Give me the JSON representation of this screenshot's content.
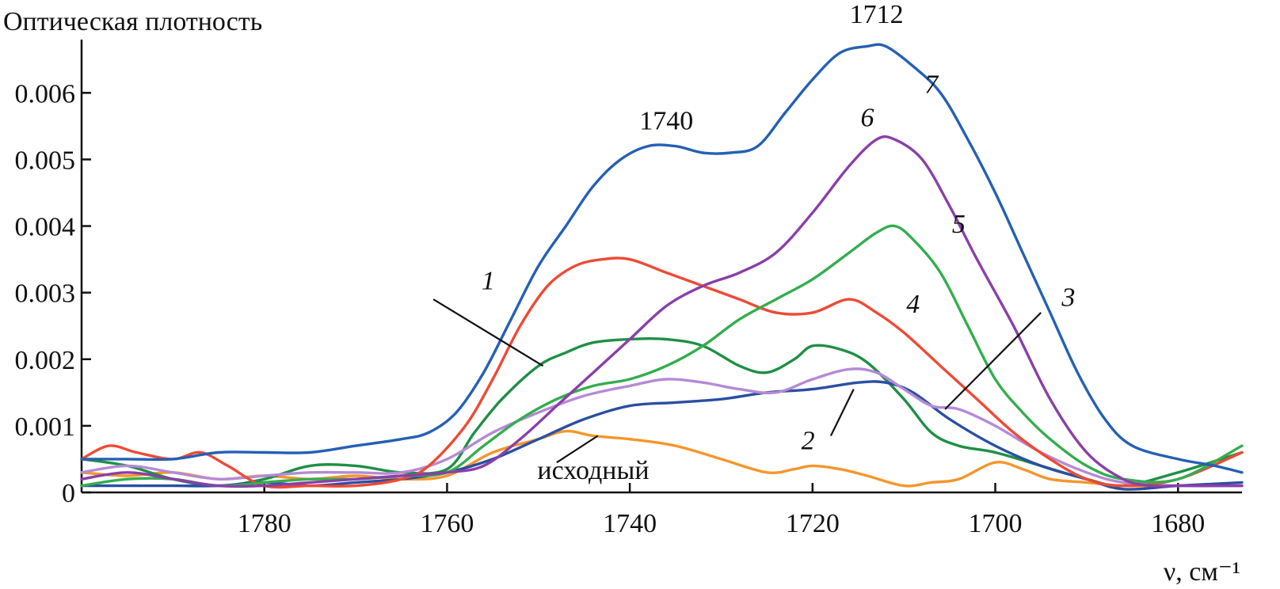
{
  "chart_data": {
    "type": "line",
    "ylabel": "Оптическая плотность",
    "xlabel": "ν, см⁻¹",
    "xlim": [
      1800,
      1673
    ],
    "ylim": [
      0,
      0.0068
    ],
    "x_ticks": [
      1780,
      1760,
      1740,
      1720,
      1700,
      1680
    ],
    "x_tick_labels": [
      "1780",
      "1760",
      "1740",
      "1720",
      "1700",
      "1680"
    ],
    "y_ticks": [
      0,
      0.001,
      0.002,
      0.003,
      0.004,
      0.005,
      0.006
    ],
    "y_tick_labels": [
      "0",
      "0.001",
      "0.002",
      "0.003",
      "0.004",
      "0.005",
      "0.006"
    ],
    "peak_annotations": [
      {
        "text": "1740",
        "x": 1736,
        "y": 0.00545
      },
      {
        "text": "1712",
        "x": 1713,
        "y": 0.00705
      }
    ],
    "series": [
      {
        "name": "исходный",
        "label": "исходный",
        "color": "#f5962a",
        "label_pos": {
          "x": 1744,
          "y": 0.0002
        },
        "leader": {
          "x1": 1748,
          "y1": 0.00045,
          "x2": 1743.5,
          "y2": 0.00085
        },
        "x": [
          1800,
          1795,
          1790,
          1785,
          1780,
          1775,
          1770,
          1765,
          1760,
          1755,
          1750,
          1747,
          1744,
          1740,
          1735,
          1730,
          1725,
          1722,
          1720,
          1717,
          1714,
          1710,
          1707,
          1704,
          1700,
          1697,
          1694,
          1690,
          1686,
          1680,
          1673
        ],
        "values": [
          0.0003,
          0.00025,
          0.0003,
          0.0002,
          0.00025,
          0.0002,
          0.00025,
          0.0002,
          0.00025,
          0.0006,
          0.0008,
          0.00092,
          0.00085,
          0.0008,
          0.0007,
          0.0005,
          0.0003,
          0.00035,
          0.0004,
          0.00035,
          0.00025,
          0.0001,
          0.00015,
          0.0002,
          0.00045,
          0.00035,
          0.0002,
          0.00015,
          0.0001,
          0.0001,
          0.0001
        ]
      },
      {
        "name": "1",
        "label": "1",
        "color": "#1f8f45",
        "label_pos": {
          "x": 1755.5,
          "y": 0.00305
        },
        "leader": {
          "x1": 1761.5,
          "y1": 0.0029,
          "x2": 1749.5,
          "y2": 0.0019
        },
        "x": [
          1800,
          1795,
          1790,
          1785,
          1780,
          1775,
          1770,
          1765,
          1760,
          1757,
          1754,
          1750,
          1747,
          1744,
          1740,
          1736,
          1732,
          1728,
          1725,
          1722,
          1720,
          1717,
          1714,
          1710,
          1707,
          1704,
          1700,
          1695,
          1690,
          1686,
          1680,
          1673
        ],
        "values": [
          0.0005,
          0.0004,
          0.0002,
          0.0001,
          0.0002,
          0.0004,
          0.0004,
          0.0003,
          0.00035,
          0.0009,
          0.0014,
          0.0019,
          0.0021,
          0.00225,
          0.0023,
          0.0023,
          0.0022,
          0.0019,
          0.0018,
          0.002,
          0.0022,
          0.00215,
          0.00195,
          0.0014,
          0.0009,
          0.0007,
          0.0006,
          0.0004,
          0.0002,
          0.0001,
          0.0003,
          0.0006
        ]
      },
      {
        "name": "2",
        "label": "2",
        "color": "#2a4fa3",
        "label_pos": {
          "x": 1720.5,
          "y": 0.00065
        },
        "leader": {
          "x1": 1718,
          "y1": 0.00085,
          "x2": 1715.5,
          "y2": 0.00155
        },
        "x": [
          1800,
          1795,
          1790,
          1785,
          1780,
          1775,
          1770,
          1765,
          1760,
          1755,
          1750,
          1745,
          1740,
          1735,
          1730,
          1725,
          1720,
          1715,
          1712,
          1709,
          1705,
          1700,
          1695,
          1690,
          1686,
          1680,
          1673
        ],
        "values": [
          0.0001,
          0.0001,
          0.0001,
          0.0001,
          0.00015,
          0.0001,
          0.00015,
          0.0002,
          0.0003,
          0.0005,
          0.0008,
          0.0011,
          0.0013,
          0.00135,
          0.0014,
          0.0015,
          0.00155,
          0.00165,
          0.00165,
          0.0015,
          0.0011,
          0.0007,
          0.0004,
          0.0002,
          5e-05,
          0.0001,
          0.00015
        ]
      },
      {
        "name": "3",
        "label": "3",
        "color": "#b58ad6",
        "label_pos": {
          "x": 1692,
          "y": 0.0028
        },
        "leader": {
          "x1": 1695,
          "y1": 0.0027,
          "x2": 1705.5,
          "y2": 0.00125
        },
        "x": [
          1800,
          1795,
          1790,
          1785,
          1780,
          1775,
          1770,
          1765,
          1760,
          1755,
          1750,
          1745,
          1740,
          1736,
          1732,
          1728,
          1724,
          1720,
          1716,
          1713,
          1710,
          1707,
          1704,
          1700,
          1695,
          1690,
          1686,
          1680,
          1673
        ],
        "values": [
          0.0003,
          0.0004,
          0.0003,
          0.0002,
          0.00025,
          0.0003,
          0.0003,
          0.0003,
          0.0005,
          0.0009,
          0.0012,
          0.00145,
          0.0016,
          0.0017,
          0.00165,
          0.00155,
          0.0015,
          0.0017,
          0.00185,
          0.0018,
          0.00155,
          0.0013,
          0.00125,
          0.001,
          0.0006,
          0.0003,
          0.00015,
          0.0001,
          0.0001
        ]
      },
      {
        "name": "4",
        "label": "4",
        "color": "#ee4a35",
        "label_pos": {
          "x": 1709,
          "y": 0.0027
        },
        "x": [
          1800,
          1797,
          1794,
          1790,
          1787,
          1784,
          1780,
          1775,
          1770,
          1765,
          1762,
          1758,
          1755,
          1752,
          1749,
          1746,
          1743,
          1740,
          1736,
          1732,
          1728,
          1724,
          1720,
          1716,
          1713,
          1710,
          1706,
          1702,
          1698,
          1694,
          1690,
          1686,
          1680,
          1673
        ],
        "values": [
          0.0005,
          0.0007,
          0.0006,
          0.0005,
          0.0006,
          0.0004,
          0.0001,
          0.0001,
          0.0001,
          0.0002,
          0.0004,
          0.001,
          0.0017,
          0.0025,
          0.0031,
          0.0034,
          0.0035,
          0.0035,
          0.0033,
          0.0031,
          0.0029,
          0.0027,
          0.0027,
          0.0029,
          0.0027,
          0.0024,
          0.0019,
          0.0014,
          0.0009,
          0.0005,
          0.0002,
          0.0001,
          0.0002,
          0.0006
        ]
      },
      {
        "name": "5",
        "label": "5",
        "color": "#34ad4e",
        "label_pos": {
          "x": 1704,
          "y": 0.0039
        },
        "x": [
          1800,
          1795,
          1790,
          1785,
          1780,
          1775,
          1770,
          1765,
          1760,
          1756,
          1752,
          1748,
          1744,
          1740,
          1736,
          1732,
          1728,
          1724,
          1720,
          1716,
          1713,
          1711,
          1709,
          1706,
          1703,
          1700,
          1697,
          1694,
          1690,
          1686,
          1680,
          1673
        ],
        "values": [
          0.0001,
          0.0002,
          0.0002,
          0.0001,
          0.00015,
          0.0002,
          0.0002,
          0.00025,
          0.0003,
          0.0007,
          0.0011,
          0.0014,
          0.0016,
          0.0017,
          0.0019,
          0.0022,
          0.0026,
          0.0029,
          0.0032,
          0.0036,
          0.0039,
          0.004,
          0.0038,
          0.0033,
          0.0025,
          0.0017,
          0.0012,
          0.0008,
          0.0004,
          0.0002,
          0.0002,
          0.0007
        ]
      },
      {
        "name": "6",
        "label": "6",
        "color": "#8a3fa8",
        "label_pos": {
          "x": 1714,
          "y": 0.0055
        },
        "x": [
          1800,
          1795,
          1790,
          1785,
          1780,
          1775,
          1770,
          1765,
          1760,
          1756,
          1752,
          1748,
          1744,
          1740,
          1736,
          1732,
          1728,
          1724,
          1720,
          1716,
          1713,
          1711,
          1708,
          1705,
          1702,
          1698,
          1694,
          1690,
          1686,
          1683,
          1680,
          1673
        ],
        "values": [
          0.0002,
          0.0003,
          0.0002,
          0.0001,
          0.0001,
          0.00015,
          0.0002,
          0.00025,
          0.0003,
          0.0004,
          0.0008,
          0.0013,
          0.0018,
          0.0023,
          0.0028,
          0.0031,
          0.0033,
          0.0036,
          0.0042,
          0.0049,
          0.0053,
          0.0053,
          0.005,
          0.0043,
          0.0035,
          0.0025,
          0.0014,
          0.0006,
          0.0002,
          0.0001,
          0.0001,
          0.0001
        ]
      },
      {
        "name": "7",
        "label": "7",
        "color": "#2460b4",
        "label_pos": {
          "x": 1707,
          "y": 0.006
        },
        "x": [
          1800,
          1795,
          1790,
          1785,
          1780,
          1775,
          1770,
          1765,
          1762,
          1759,
          1756,
          1753,
          1750,
          1747,
          1744,
          1741,
          1738,
          1735,
          1732,
          1729,
          1726,
          1723,
          1720,
          1717,
          1714,
          1712,
          1709,
          1706,
          1703,
          1700,
          1697,
          1694,
          1691,
          1688,
          1685,
          1680,
          1676,
          1673
        ],
        "values": [
          0.0005,
          0.0005,
          0.0005,
          0.0006,
          0.0006,
          0.0006,
          0.0007,
          0.0008,
          0.0009,
          0.0012,
          0.0018,
          0.0026,
          0.0034,
          0.004,
          0.0046,
          0.005,
          0.0052,
          0.0052,
          0.0051,
          0.0051,
          0.0052,
          0.0057,
          0.0062,
          0.0066,
          0.0067,
          0.0067,
          0.0064,
          0.006,
          0.0053,
          0.0045,
          0.0036,
          0.0027,
          0.0018,
          0.0011,
          0.0007,
          0.0005,
          0.0004,
          0.0003
        ]
      }
    ]
  }
}
